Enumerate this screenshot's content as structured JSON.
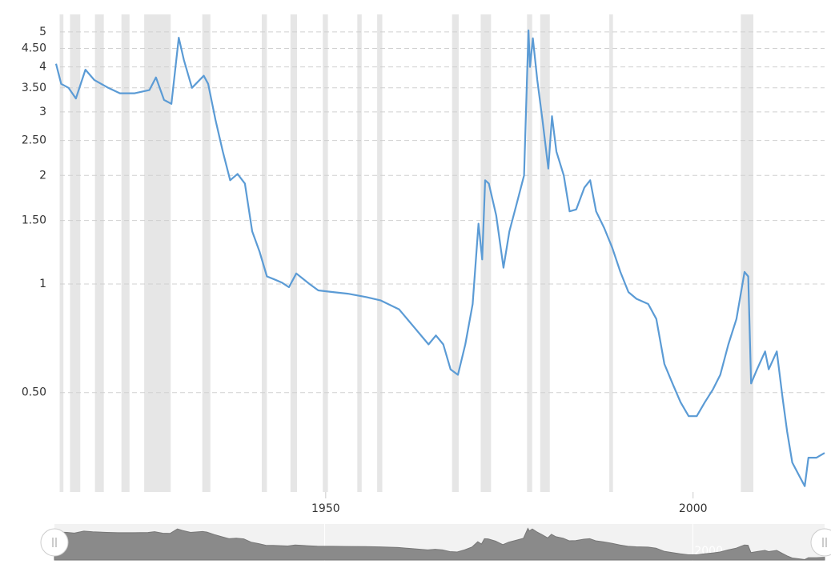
{
  "chart_data": {
    "type": "line",
    "log_scale": true,
    "grid": true,
    "color": "#5b9bd5",
    "band_color": "#e6e6e6",
    "x": [
      1913.3,
      1914,
      1915,
      1916,
      1917.3,
      1918.5,
      1920.4,
      1922,
      1924,
      1926,
      1926.9,
      1928,
      1929,
      1930,
      1930.7,
      1931.8,
      1933.4,
      1934,
      1935,
      1936,
      1937,
      1938,
      1939,
      1940,
      1941,
      1942,
      1943,
      1944,
      1945,
      1946,
      1947.8,
      1949,
      1951,
      1953,
      1955.5,
      1957.5,
      1960,
      1962,
      1964,
      1965,
      1966,
      1967,
      1968,
      1969,
      1970,
      1970.8,
      1971.3,
      1971.7,
      1972.2,
      1973.2,
      1974.2,
      1975,
      1976,
      1977,
      1977.6,
      1977.8,
      1978.2,
      1978.8,
      1979.5,
      1980.3,
      1980.8,
      1981.4,
      1982.4,
      1983.2,
      1984.1,
      1985.2,
      1986,
      1986.8,
      1987.9,
      1989,
      1990.1,
      1991.2,
      1992.3,
      1993.9,
      1995,
      1996.1,
      1997.2,
      1998.3,
      1999.4,
      2000.5,
      2001.6,
      2002.7,
      2003.7,
      2004.8,
      2005.9,
      2007,
      2007.5,
      2007.9,
      2008.7,
      2009.8,
      2010.3,
      2011.4,
      2012.2,
      2012.8,
      2013.5,
      2014.6,
      2015.2,
      2015.7,
      2016.8,
      2017.9
    ],
    "values": [
      4.08,
      3.59,
      3.5,
      3.27,
      3.93,
      3.68,
      3.5,
      3.38,
      3.38,
      3.45,
      3.74,
      3.24,
      3.16,
      4.82,
      4.18,
      3.5,
      3.78,
      3.59,
      2.85,
      2.33,
      1.94,
      2.02,
      1.9,
      1.4,
      1.23,
      1.05,
      1.03,
      1.01,
      0.98,
      1.07,
      1.0,
      0.96,
      0.95,
      0.94,
      0.92,
      0.9,
      0.85,
      0.76,
      0.68,
      0.72,
      0.68,
      0.58,
      0.56,
      0.68,
      0.88,
      1.47,
      1.17,
      1.94,
      1.9,
      1.55,
      1.11,
      1.4,
      1.67,
      2.0,
      5.05,
      4.0,
      4.8,
      3.68,
      2.85,
      2.09,
      2.92,
      2.33,
      2.0,
      1.59,
      1.61,
      1.85,
      1.94,
      1.59,
      1.43,
      1.26,
      1.08,
      0.95,
      0.91,
      0.88,
      0.8,
      0.6,
      0.53,
      0.47,
      0.43,
      0.43,
      0.47,
      0.51,
      0.56,
      0.68,
      0.8,
      1.08,
      1.05,
      0.53,
      0.58,
      0.65,
      0.58,
      0.65,
      0.48,
      0.39,
      0.32,
      0.29,
      0.275,
      0.33,
      0.33,
      0.34
    ],
    "shaded_ranges": [
      [
        1913.8,
        1914.3
      ],
      [
        1915.2,
        1916.6
      ],
      [
        1918.6,
        1919.8
      ],
      [
        1922.2,
        1923.3
      ],
      [
        1925.3,
        1928.9
      ],
      [
        1933.2,
        1934.3
      ],
      [
        1941.3,
        1942.0
      ],
      [
        1945.2,
        1946.1
      ],
      [
        1949.6,
        1950.3
      ],
      [
        1954.3,
        1954.9
      ],
      [
        1957.0,
        1957.7
      ],
      [
        1967.2,
        1968.1
      ],
      [
        1971.1,
        1972.5
      ],
      [
        1977.4,
        1978.1
      ],
      [
        1979.2,
        1980.5
      ],
      [
        1988.6,
        1989.1
      ],
      [
        2006.5,
        2008.2
      ]
    ],
    "xlim": [
      1913.3,
      2017.9
    ],
    "xticks": [
      1950,
      2000
    ],
    "ylim": [
      0.265,
      5.26
    ],
    "yticks": [
      5,
      {
        "value": 4.5,
        "label": "4.50"
      },
      4,
      {
        "value": 3.5,
        "label": "3.50"
      },
      3,
      {
        "value": 2.5,
        "label": "2.50"
      },
      2,
      {
        "value": 1.5,
        "label": "1.50"
      },
      1,
      {
        "value": 0.5,
        "label": "0.50"
      }
    ]
  }
}
